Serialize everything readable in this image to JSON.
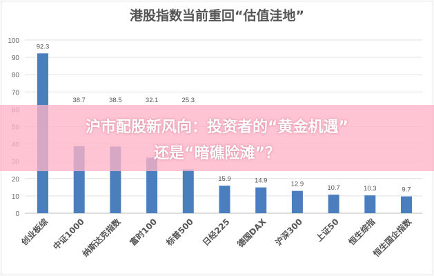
{
  "chart_data": {
    "type": "bar",
    "title": "港股指数当前重回“估值洼地”",
    "categories": [
      "创业板综",
      "中证1000",
      "纳斯达克指数",
      "富时100",
      "标普500",
      "日经225",
      "德国DAX",
      "沪深300",
      "上证50",
      "恒生综指",
      "恒生国企指数"
    ],
    "values": [
      92.3,
      38.7,
      38.5,
      32.1,
      25.3,
      15.9,
      14.9,
      12.9,
      10.7,
      10.3,
      9.7
    ],
    "ylim": [
      0,
      100
    ],
    "yticks": [
      0,
      10,
      20,
      30,
      40,
      50,
      60,
      70,
      80,
      90,
      100
    ],
    "grid": true,
    "bar_color": "#4a7ebf",
    "xlabel": "",
    "ylabel": ""
  },
  "overlay": {
    "line1": "沪市配股新风向：投资者的“黄金机遇”",
    "line2": "还是“暗礁险滩”？",
    "color": "#ffb4c8"
  }
}
